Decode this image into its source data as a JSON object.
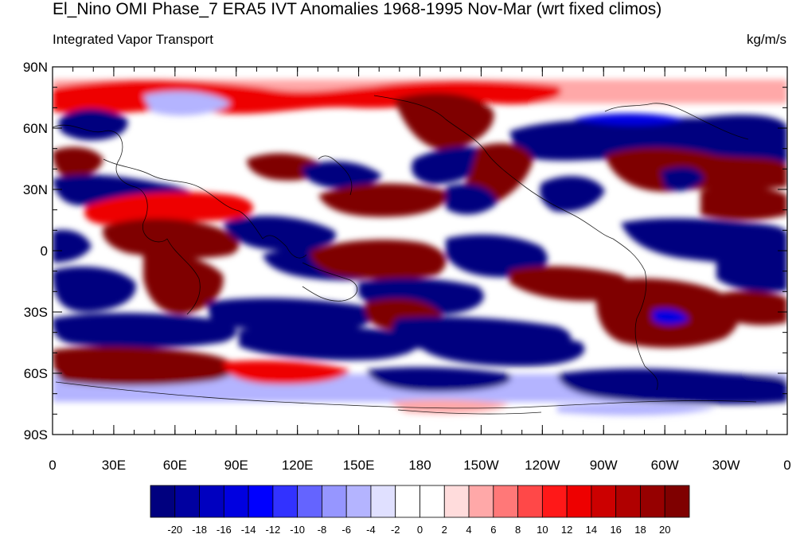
{
  "title": "El_Nino OMI Phase_7 ERA5 IVT Anomalies 1968-1995 Nov-Mar (wrt fixed climos)",
  "subtitle_left": "Integrated Vapor Transport",
  "subtitle_right": "kg/m/s",
  "lat_labels": [
    "90N",
    "60N",
    "30N",
    "0",
    "30S",
    "60S",
    "90S"
  ],
  "lon_labels": [
    "0",
    "30E",
    "60E",
    "90E",
    "120E",
    "150E",
    "180",
    "150W",
    "120W",
    "90W",
    "60W",
    "30W",
    "0"
  ],
  "colorbar": {
    "colors": [
      "#00007f",
      "#0000a0",
      "#0000c0",
      "#0000e0",
      "#0000ff",
      "#3232ff",
      "#6464ff",
      "#9696ff",
      "#b4b4ff",
      "#e0e0ff",
      "#ffffff",
      "#ffffff",
      "#ffdcdc",
      "#ffa8a8",
      "#ff7878",
      "#ff4848",
      "#ff1818",
      "#ee0000",
      "#cc0000",
      "#b00000",
      "#960000",
      "#7f0000"
    ],
    "labels": [
      "-20",
      "-18",
      "-16",
      "-14",
      "-12",
      "-10",
      "-8",
      "-6",
      "-4",
      "-2",
      "0",
      "2",
      "4",
      "6",
      "8",
      "10",
      "12",
      "14",
      "16",
      "18",
      "20"
    ]
  },
  "colors": {
    "strong_blue": "#00007f",
    "mid_blue": "#0000e0",
    "light_blue": "#b4b4ff",
    "strong_red": "#7f0000",
    "mid_red": "#ee0000",
    "light_red": "#ffa8a8"
  }
}
